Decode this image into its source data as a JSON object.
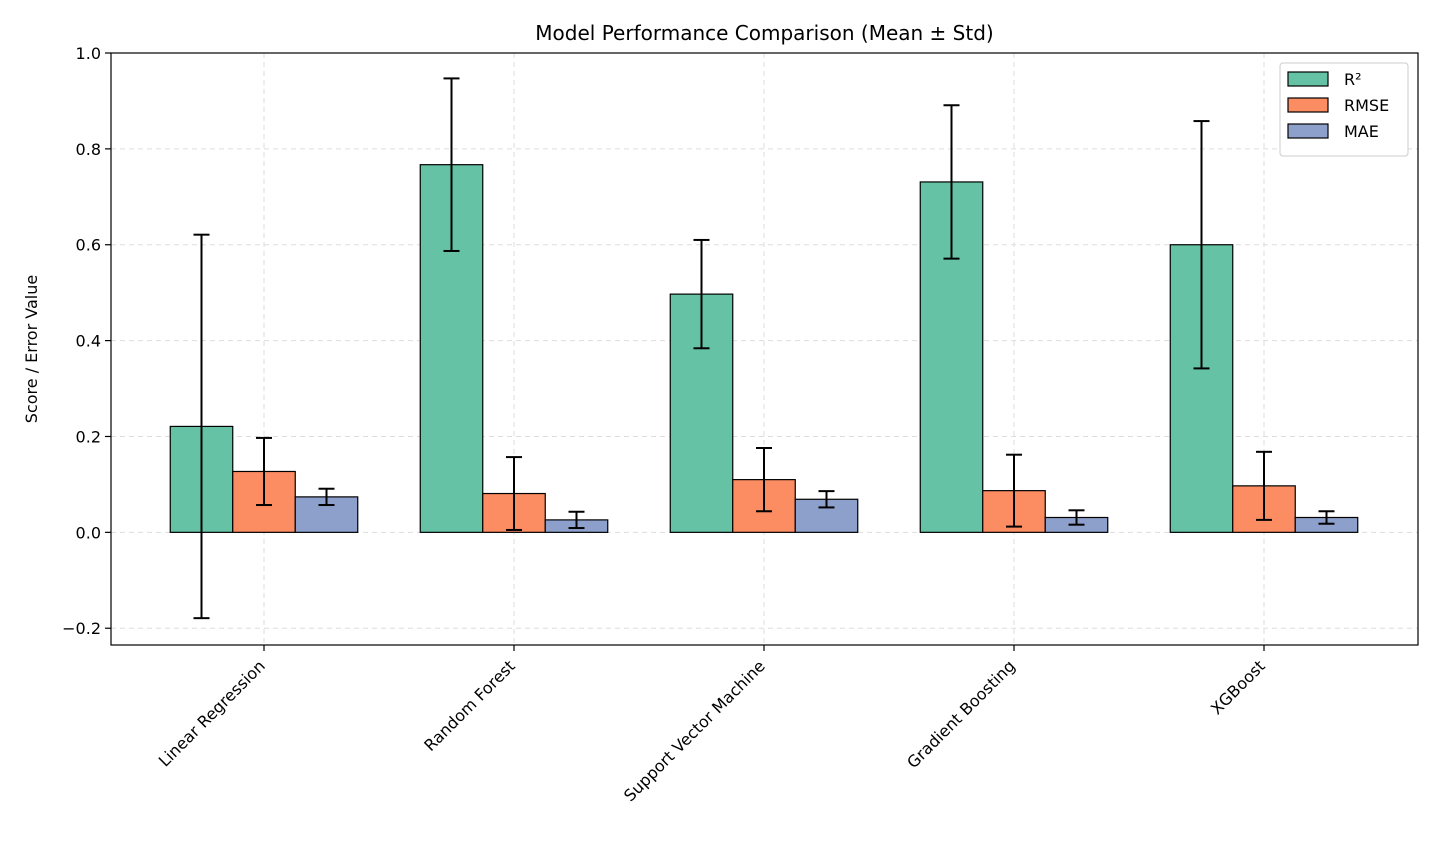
{
  "chart_data": {
    "type": "bar",
    "title": "Model Performance Comparison (Mean ± Std)",
    "xlabel": "",
    "ylabel": "Score / Error Value",
    "categories": [
      "Linear Regression",
      "Random Forest",
      "Support Vector Machine",
      "Gradient Boosting",
      "XGBoost"
    ],
    "series": [
      {
        "name": "R²",
        "color": "#66c2a5",
        "values": [
          0.221,
          0.767,
          0.497,
          0.731,
          0.6
        ],
        "errors": [
          0.4,
          0.18,
          0.113,
          0.16,
          0.258
        ]
      },
      {
        "name": "RMSE",
        "color": "#fc8d62",
        "values": [
          0.127,
          0.081,
          0.11,
          0.087,
          0.097
        ],
        "errors": [
          0.07,
          0.076,
          0.066,
          0.075,
          0.071
        ]
      },
      {
        "name": "MAE",
        "color": "#8da0cb",
        "values": [
          0.074,
          0.026,
          0.069,
          0.031,
          0.031
        ],
        "errors": [
          0.017,
          0.017,
          0.017,
          0.015,
          0.013
        ]
      }
    ],
    "ylim": [
      -0.235,
      1.0
    ],
    "yticks": [
      -0.2,
      0.0,
      0.2,
      0.4,
      0.6,
      0.8,
      1.0
    ],
    "ytick_labels": [
      "−0.2",
      "0.0",
      "0.2",
      "0.4",
      "0.6",
      "0.8",
      "1.0"
    ],
    "grid": true,
    "legend_position": "top-right"
  }
}
